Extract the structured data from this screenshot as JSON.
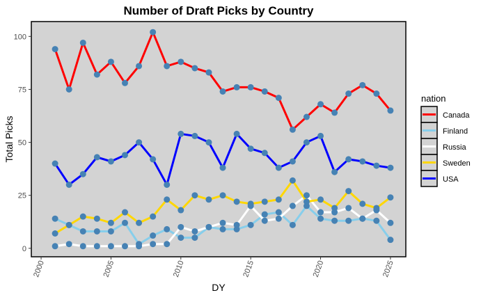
{
  "chart_data": {
    "type": "line",
    "title": "Number of Draft Picks by Country",
    "xlabel": "DY",
    "ylabel": "Total Picks",
    "xlim": [
      1999.3,
      2026.1
    ],
    "ylim": [
      -4,
      107
    ],
    "xticks": [
      2000,
      2005,
      2010,
      2015,
      2020,
      2025
    ],
    "yticks": [
      0,
      25,
      50,
      75,
      100
    ],
    "legend_title": "nation",
    "legend_position": "right",
    "point_color": "#4682B4",
    "x": [
      2001,
      2002,
      2003,
      2004,
      2005,
      2006,
      2007,
      2008,
      2009,
      2010,
      2011,
      2012,
      2013,
      2014,
      2015,
      2016,
      2017,
      2018,
      2019,
      2020,
      2021,
      2022,
      2023,
      2024,
      2025
    ],
    "series": [
      {
        "name": "Canada",
        "color": "#FF0000",
        "values": [
          94,
          75,
          97,
          82,
          88,
          78,
          86,
          102,
          86,
          88,
          85,
          83,
          74,
          76,
          76,
          74,
          71,
          56,
          62,
          68,
          64,
          73,
          77,
          73,
          65
        ]
      },
      {
        "name": "Finland",
        "color": "#87CEEB",
        "values": [
          14,
          11,
          8,
          8,
          8,
          12,
          2,
          6,
          9,
          5,
          5,
          10,
          9,
          9,
          11,
          16,
          17,
          11,
          20,
          14,
          13,
          13,
          14,
          13,
          4
        ]
      },
      {
        "name": "Russia",
        "color": "#FFFFFF",
        "values": [
          1,
          2,
          1,
          1,
          1,
          1,
          1,
          2,
          2,
          10,
          8,
          10,
          12,
          11,
          20,
          13,
          14,
          20,
          25,
          17,
          17,
          19,
          14,
          18,
          12
        ]
      },
      {
        "name": "Sweden",
        "color": "#FFD700",
        "values": [
          7,
          11,
          15,
          14,
          12,
          17,
          12,
          15,
          23,
          18,
          25,
          23,
          25,
          22,
          21,
          22,
          23,
          32,
          22,
          23,
          19,
          27,
          21,
          19,
          24
        ]
      },
      {
        "name": "USA",
        "color": "#0000FF",
        "values": [
          40,
          30,
          35,
          43,
          41,
          44,
          50,
          42,
          30,
          54,
          53,
          50,
          38,
          54,
          47,
          45,
          38,
          41,
          50,
          53,
          36,
          42,
          41,
          39,
          38
        ]
      }
    ]
  }
}
